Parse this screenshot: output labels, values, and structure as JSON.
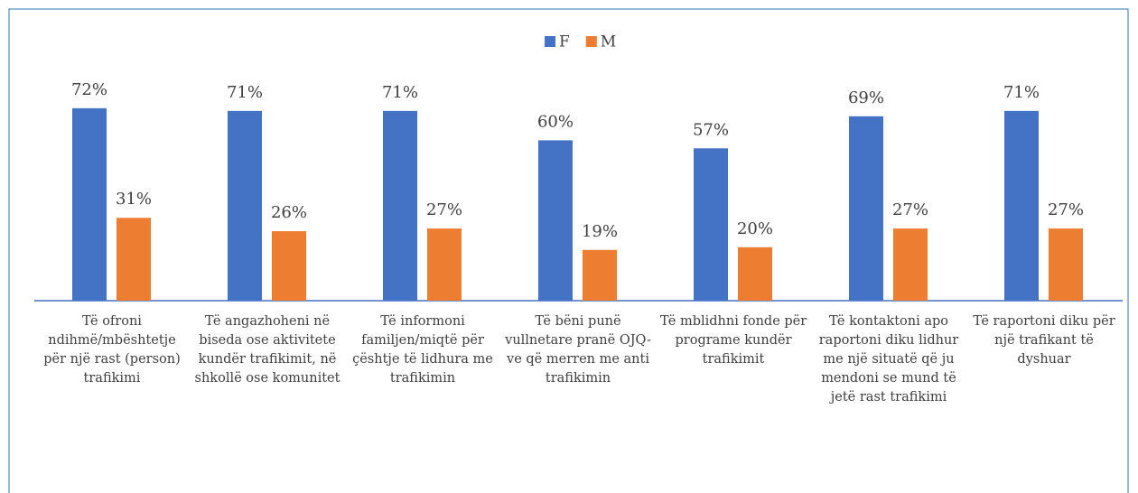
{
  "chart_data": {
    "type": "bar",
    "categories": [
      "Të ofroni ndihmë/mbështetje për një rast (person) trafikimi",
      "Të angazhoheni në biseda ose aktivitete kundër trafikimit, në shkollë ose komunitet",
      "Të informoni familjen/miqtë për çështje të lidhura me trafikimin",
      "Të bëni punë vullnetare pranë OJQ-ve që merren me anti trafikimin",
      "Të mblidhni fonde për programe kundër trafikimit",
      "Të kontaktoni apo raportoni diku lidhur me një situatë që ju mendoni se mund të jetë rast trafikimi",
      "Të raportoni diku për një trafikant të dyshuar"
    ],
    "series": [
      {
        "name": "F",
        "color": "#4472c4",
        "values": [
          72,
          71,
          71,
          60,
          57,
          69,
          71
        ],
        "value_labels": [
          "72%",
          "71%",
          "71%",
          "60%",
          "57%",
          "69%",
          "71%"
        ]
      },
      {
        "name": "M",
        "color": "#ed7d31",
        "values": [
          31,
          26,
          27,
          19,
          20,
          27,
          27
        ],
        "value_labels": [
          "31%",
          "26%",
          "27%",
          "19%",
          "20%",
          "27%",
          "27%"
        ]
      }
    ],
    "legend": "top"
  }
}
